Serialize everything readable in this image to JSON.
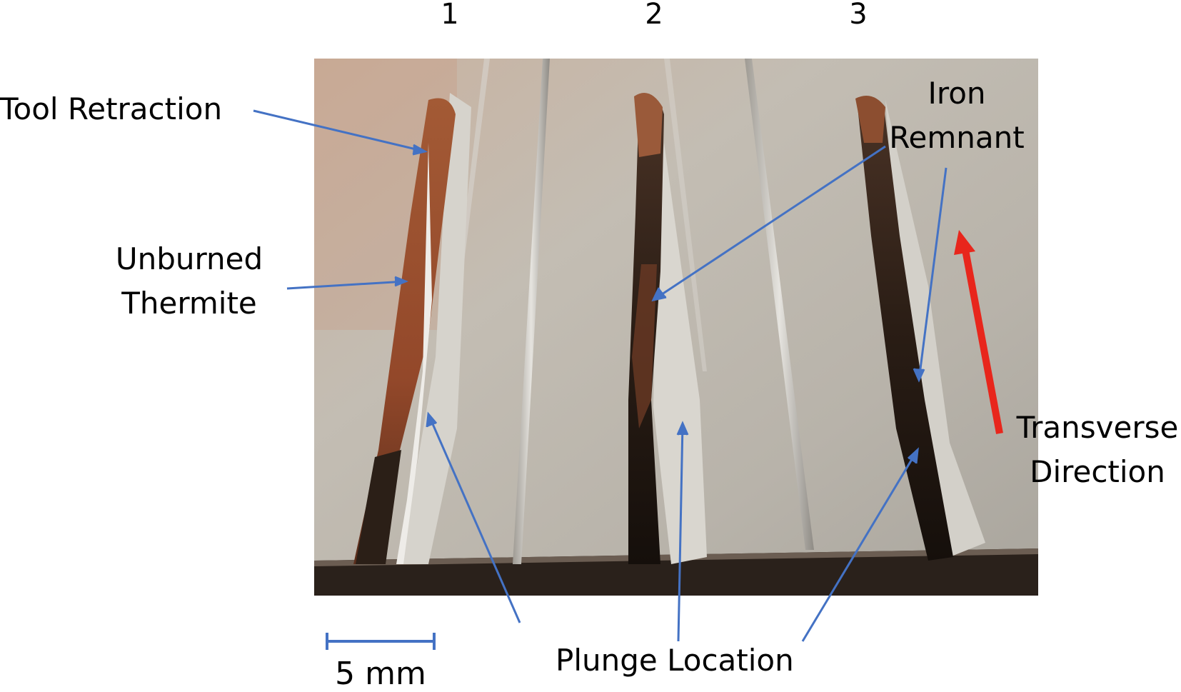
{
  "trench_numbers": [
    "1",
    "2",
    "3"
  ],
  "labels": {
    "tool_retraction": "Tool Retraction",
    "unburned_thermite_line1": "Unburned",
    "unburned_thermite_line2": "Thermite",
    "iron_remnant_line1": "Iron",
    "iron_remnant_line2": "Remnant",
    "transverse_direction_line1": "Transverse",
    "transverse_direction_line2": "Direction",
    "plunge_location": "Plunge Location"
  },
  "scale_bar_label": "5 mm",
  "colors": {
    "annotation_line": "#4472c4",
    "direction_arrow": "#e8261c",
    "plate_metal": "#b9b4ab",
    "thermite_rust": "#9c4a2a",
    "iron_dark": "#2a1e16"
  }
}
